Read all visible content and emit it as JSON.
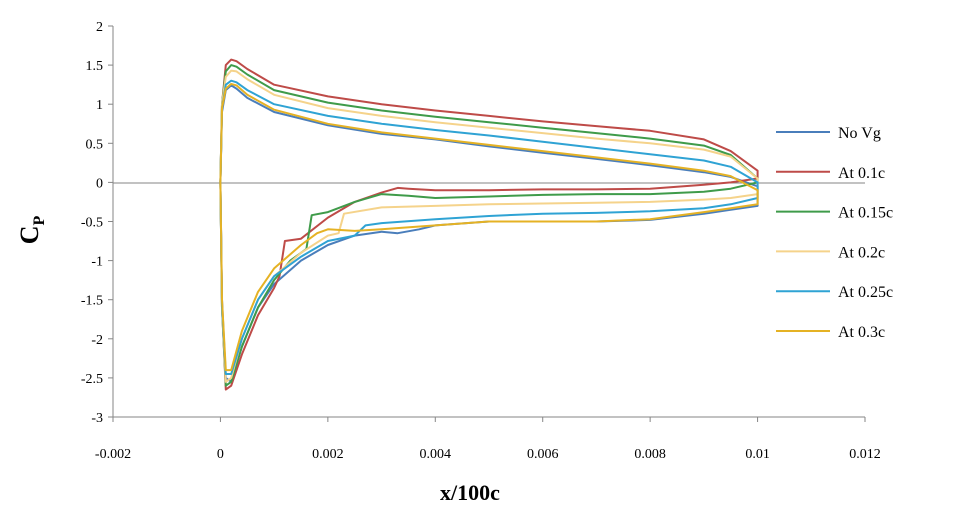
{
  "chart_data": {
    "type": "line",
    "title": "",
    "xlabel": "x/100c",
    "ylabel": {
      "main": "C",
      "sub": "P"
    },
    "xlim": [
      -0.002,
      0.012
    ],
    "ylim": [
      -3,
      2
    ],
    "x_ticks": [
      "-0.002",
      "0",
      "0.002",
      "0.004",
      "0.006",
      "0.008",
      "0.01",
      "0.012"
    ],
    "y_ticks": [
      "2",
      "1.5",
      "1",
      "0.5",
      "0",
      "-0.5",
      "-1",
      "-1.5",
      "-2",
      "-2.5",
      "-3"
    ],
    "grid": false,
    "legend_position": "right",
    "series": [
      {
        "name": "No Vg",
        "color": "#4A7EBB",
        "upper": [
          [
            0,
            0
          ],
          [
            3e-05,
            0.9
          ],
          [
            0.0001,
            1.18
          ],
          [
            0.0002,
            1.24
          ],
          [
            0.0003,
            1.2
          ],
          [
            0.0005,
            1.08
          ],
          [
            0.001,
            0.9
          ],
          [
            0.002,
            0.73
          ],
          [
            0.003,
            0.62
          ],
          [
            0.004,
            0.55
          ],
          [
            0.005,
            0.46
          ],
          [
            0.006,
            0.38
          ],
          [
            0.007,
            0.3
          ],
          [
            0.008,
            0.22
          ],
          [
            0.009,
            0.13
          ],
          [
            0.0095,
            0.07
          ],
          [
            0.01,
            -0.05
          ]
        ],
        "lower": [
          [
            0,
            0
          ],
          [
            3e-05,
            -1.5
          ],
          [
            0.0001,
            -2.5
          ],
          [
            0.0002,
            -2.55
          ],
          [
            0.0004,
            -2.1
          ],
          [
            0.0007,
            -1.6
          ],
          [
            0.001,
            -1.3
          ],
          [
            0.0015,
            -1.0
          ],
          [
            0.002,
            -0.8
          ],
          [
            0.0025,
            -0.68
          ],
          [
            0.003,
            -0.63
          ],
          [
            0.0033,
            -0.65
          ],
          [
            0.0037,
            -0.6
          ],
          [
            0.004,
            -0.55
          ],
          [
            0.005,
            -0.5
          ],
          [
            0.006,
            -0.5
          ],
          [
            0.007,
            -0.5
          ],
          [
            0.008,
            -0.48
          ],
          [
            0.009,
            -0.4
          ],
          [
            0.0095,
            -0.35
          ],
          [
            0.01,
            -0.3
          ]
        ]
      },
      {
        "name": "At 0.1c",
        "color": "#BE4B48",
        "upper": [
          [
            0,
            0
          ],
          [
            3e-05,
            1.0
          ],
          [
            0.0001,
            1.5
          ],
          [
            0.0002,
            1.57
          ],
          [
            0.0003,
            1.55
          ],
          [
            0.0005,
            1.45
          ],
          [
            0.001,
            1.25
          ],
          [
            0.002,
            1.1
          ],
          [
            0.003,
            1.0
          ],
          [
            0.004,
            0.92
          ],
          [
            0.005,
            0.85
          ],
          [
            0.006,
            0.78
          ],
          [
            0.007,
            0.72
          ],
          [
            0.008,
            0.66
          ],
          [
            0.009,
            0.55
          ],
          [
            0.0095,
            0.4
          ],
          [
            0.01,
            0.15
          ]
        ],
        "lower": [
          [
            0,
            0
          ],
          [
            3e-05,
            -1.6
          ],
          [
            0.0001,
            -2.65
          ],
          [
            0.0002,
            -2.6
          ],
          [
            0.0004,
            -2.2
          ],
          [
            0.0007,
            -1.7
          ],
          [
            0.001,
            -1.35
          ],
          [
            0.0011,
            -1.2
          ],
          [
            0.0012,
            -0.75
          ],
          [
            0.0015,
            -0.72
          ],
          [
            0.002,
            -0.45
          ],
          [
            0.0025,
            -0.25
          ],
          [
            0.003,
            -0.13
          ],
          [
            0.0033,
            -0.07
          ],
          [
            0.0035,
            -0.08
          ],
          [
            0.004,
            -0.1
          ],
          [
            0.005,
            -0.1
          ],
          [
            0.006,
            -0.09
          ],
          [
            0.007,
            -0.09
          ],
          [
            0.008,
            -0.08
          ],
          [
            0.009,
            -0.03
          ],
          [
            0.0095,
            0
          ],
          [
            0.01,
            0.05
          ]
        ]
      },
      {
        "name": "At 0.15c",
        "color": "#3F9B4A",
        "upper": [
          [
            0,
            0
          ],
          [
            3e-05,
            1.0
          ],
          [
            0.0001,
            1.42
          ],
          [
            0.0002,
            1.5
          ],
          [
            0.0003,
            1.48
          ],
          [
            0.0005,
            1.38
          ],
          [
            0.001,
            1.18
          ],
          [
            0.002,
            1.02
          ],
          [
            0.003,
            0.92
          ],
          [
            0.004,
            0.84
          ],
          [
            0.005,
            0.77
          ],
          [
            0.006,
            0.7
          ],
          [
            0.007,
            0.63
          ],
          [
            0.008,
            0.56
          ],
          [
            0.009,
            0.47
          ],
          [
            0.0095,
            0.35
          ],
          [
            0.01,
            0.05
          ]
        ],
        "lower": [
          [
            0,
            0
          ],
          [
            3e-05,
            -1.6
          ],
          [
            0.0001,
            -2.6
          ],
          [
            0.0002,
            -2.55
          ],
          [
            0.0004,
            -2.1
          ],
          [
            0.0007,
            -1.6
          ],
          [
            0.001,
            -1.25
          ],
          [
            0.0013,
            -1.0
          ],
          [
            0.0016,
            -0.85
          ],
          [
            0.0017,
            -0.42
          ],
          [
            0.002,
            -0.38
          ],
          [
            0.0025,
            -0.25
          ],
          [
            0.003,
            -0.15
          ],
          [
            0.0035,
            -0.17
          ],
          [
            0.004,
            -0.2
          ],
          [
            0.005,
            -0.18
          ],
          [
            0.006,
            -0.16
          ],
          [
            0.007,
            -0.15
          ],
          [
            0.008,
            -0.15
          ],
          [
            0.009,
            -0.12
          ],
          [
            0.0095,
            -0.08
          ],
          [
            0.01,
            0
          ]
        ]
      },
      {
        "name": "At 0.2c",
        "color": "#F5D38B",
        "upper": [
          [
            0,
            0
          ],
          [
            3e-05,
            1.0
          ],
          [
            0.0001,
            1.35
          ],
          [
            0.0002,
            1.43
          ],
          [
            0.0003,
            1.42
          ],
          [
            0.0005,
            1.32
          ],
          [
            0.001,
            1.12
          ],
          [
            0.002,
            0.95
          ],
          [
            0.003,
            0.85
          ],
          [
            0.004,
            0.77
          ],
          [
            0.005,
            0.7
          ],
          [
            0.006,
            0.63
          ],
          [
            0.007,
            0.56
          ],
          [
            0.008,
            0.5
          ],
          [
            0.009,
            0.42
          ],
          [
            0.0095,
            0.33
          ],
          [
            0.01,
            0.05
          ]
        ],
        "lower": [
          [
            0,
            0
          ],
          [
            3e-05,
            -1.6
          ],
          [
            0.0001,
            -2.55
          ],
          [
            0.0002,
            -2.5
          ],
          [
            0.0004,
            -2.0
          ],
          [
            0.0007,
            -1.5
          ],
          [
            0.001,
            -1.2
          ],
          [
            0.0015,
            -0.9
          ],
          [
            0.002,
            -0.68
          ],
          [
            0.0022,
            -0.65
          ],
          [
            0.0023,
            -0.4
          ],
          [
            0.003,
            -0.32
          ],
          [
            0.004,
            -0.3
          ],
          [
            0.005,
            -0.28
          ],
          [
            0.006,
            -0.27
          ],
          [
            0.007,
            -0.26
          ],
          [
            0.008,
            -0.25
          ],
          [
            0.009,
            -0.22
          ],
          [
            0.0095,
            -0.2
          ],
          [
            0.01,
            -0.15
          ]
        ]
      },
      {
        "name": "At 0.25c",
        "color": "#2FA3D4",
        "upper": [
          [
            0,
            0
          ],
          [
            3e-05,
            0.95
          ],
          [
            0.0001,
            1.25
          ],
          [
            0.0002,
            1.3
          ],
          [
            0.0003,
            1.28
          ],
          [
            0.0005,
            1.18
          ],
          [
            0.001,
            1.0
          ],
          [
            0.002,
            0.85
          ],
          [
            0.003,
            0.75
          ],
          [
            0.004,
            0.67
          ],
          [
            0.005,
            0.6
          ],
          [
            0.006,
            0.52
          ],
          [
            0.007,
            0.44
          ],
          [
            0.008,
            0.36
          ],
          [
            0.009,
            0.28
          ],
          [
            0.0095,
            0.2
          ],
          [
            0.01,
            0
          ]
        ],
        "lower": [
          [
            0,
            0
          ],
          [
            3e-05,
            -1.6
          ],
          [
            0.0001,
            -2.45
          ],
          [
            0.0002,
            -2.45
          ],
          [
            0.0004,
            -2.0
          ],
          [
            0.0007,
            -1.5
          ],
          [
            0.001,
            -1.2
          ],
          [
            0.0015,
            -0.95
          ],
          [
            0.002,
            -0.75
          ],
          [
            0.0025,
            -0.68
          ],
          [
            0.0027,
            -0.55
          ],
          [
            0.003,
            -0.52
          ],
          [
            0.004,
            -0.47
          ],
          [
            0.005,
            -0.43
          ],
          [
            0.006,
            -0.4
          ],
          [
            0.007,
            -0.39
          ],
          [
            0.008,
            -0.37
          ],
          [
            0.009,
            -0.33
          ],
          [
            0.0095,
            -0.28
          ],
          [
            0.01,
            -0.2
          ]
        ]
      },
      {
        "name": "At 0.3c",
        "color": "#E5B224",
        "upper": [
          [
            0,
            0
          ],
          [
            3e-05,
            0.95
          ],
          [
            0.0001,
            1.2
          ],
          [
            0.0002,
            1.26
          ],
          [
            0.0003,
            1.24
          ],
          [
            0.0005,
            1.12
          ],
          [
            0.001,
            0.93
          ],
          [
            0.002,
            0.75
          ],
          [
            0.003,
            0.64
          ],
          [
            0.004,
            0.56
          ],
          [
            0.005,
            0.48
          ],
          [
            0.006,
            0.4
          ],
          [
            0.007,
            0.32
          ],
          [
            0.008,
            0.24
          ],
          [
            0.009,
            0.15
          ],
          [
            0.0095,
            0.08
          ],
          [
            0.01,
            -0.1
          ]
        ],
        "lower": [
          [
            0,
            0
          ],
          [
            3e-05,
            -1.5
          ],
          [
            0.0001,
            -2.4
          ],
          [
            0.0002,
            -2.4
          ],
          [
            0.0004,
            -1.9
          ],
          [
            0.0007,
            -1.4
          ],
          [
            0.001,
            -1.1
          ],
          [
            0.0015,
            -0.8
          ],
          [
            0.0018,
            -0.65
          ],
          [
            0.002,
            -0.6
          ],
          [
            0.0025,
            -0.62
          ],
          [
            0.003,
            -0.6
          ],
          [
            0.004,
            -0.55
          ],
          [
            0.005,
            -0.5
          ],
          [
            0.006,
            -0.5
          ],
          [
            0.007,
            -0.5
          ],
          [
            0.008,
            -0.47
          ],
          [
            0.009,
            -0.38
          ],
          [
            0.0095,
            -0.33
          ],
          [
            0.01,
            -0.28
          ]
        ]
      }
    ]
  }
}
